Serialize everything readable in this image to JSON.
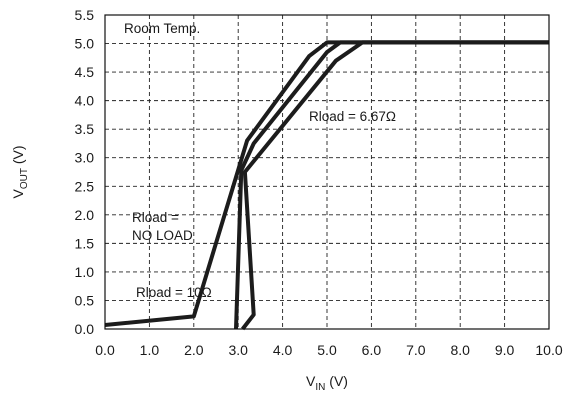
{
  "chart_data": {
    "type": "line",
    "title": "",
    "xlabel": {
      "main": "V",
      "sub": "IN",
      "unit": " (V)"
    },
    "ylabel": {
      "main": "V",
      "sub": "OUT",
      "unit": " (V)"
    },
    "xlim": [
      0,
      10
    ],
    "ylim": [
      0,
      5.5
    ],
    "x_ticks": [
      "0.0",
      "1.0",
      "2.0",
      "3.0",
      "4.0",
      "5.0",
      "6.0",
      "7.0",
      "8.0",
      "9.0",
      "10.0"
    ],
    "y_ticks": [
      "0.0",
      "0.5",
      "1.0",
      "1.5",
      "2.0",
      "2.5",
      "3.0",
      "3.5",
      "4.0",
      "4.5",
      "5.0",
      "5.5"
    ],
    "grid": true,
    "series": [
      {
        "name": "Rload = NO LOAD",
        "points": [
          [
            0.0,
            0.07
          ],
          [
            2.0,
            0.22
          ],
          [
            3.2,
            3.3
          ],
          [
            4.6,
            4.78
          ],
          [
            5.0,
            5.02
          ],
          [
            10.0,
            5.02
          ]
        ]
      },
      {
        "name": "Rload = 10Ω",
        "points": [
          [
            2.95,
            0.0
          ],
          [
            3.07,
            2.78
          ],
          [
            3.35,
            3.25
          ],
          [
            5.0,
            4.85
          ],
          [
            5.3,
            5.02
          ],
          [
            10.0,
            5.02
          ]
        ]
      },
      {
        "name": "Rload = 6.67Ω",
        "points": [
          [
            3.1,
            0.0
          ],
          [
            3.35,
            0.25
          ],
          [
            3.15,
            2.75
          ],
          [
            5.2,
            4.7
          ],
          [
            5.8,
            5.02
          ],
          [
            10.0,
            5.02
          ]
        ]
      }
    ],
    "annotations": {
      "room_temp": "Room Temp.",
      "no_load_line1": "Rload =",
      "no_load_line2": "NO LOAD",
      "r10": "Rload = 10Ω",
      "r667": "Rload = 6.67Ω"
    }
  }
}
